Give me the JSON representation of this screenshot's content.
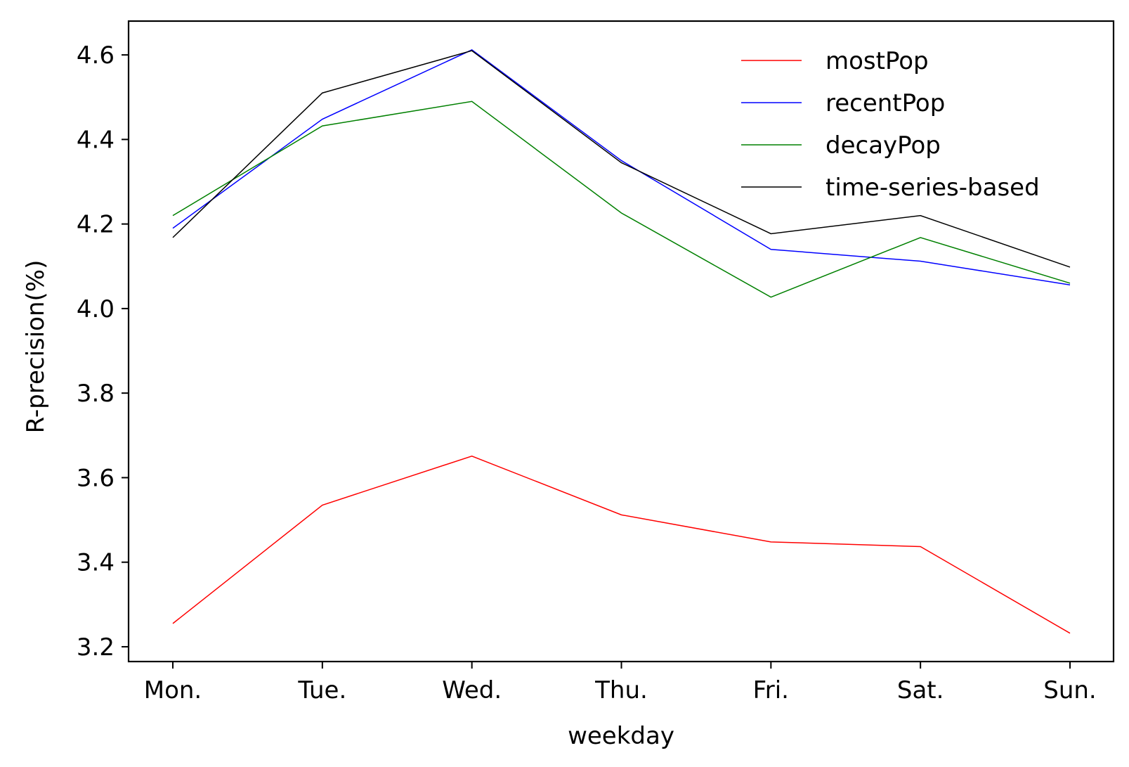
{
  "chart_data": {
    "type": "line",
    "title": "",
    "xlabel": "weekday",
    "ylabel": "R-precision(%)",
    "categories": [
      "Mon.",
      "Tue.",
      "Wed.",
      "Thu.",
      "Fri.",
      "Sat.",
      "Sun."
    ],
    "ylim": [
      3.165,
      4.68
    ],
    "yticks": [
      "3.2",
      "3.4",
      "3.6",
      "3.8",
      "4.0",
      "4.2",
      "4.4",
      "4.6"
    ],
    "grid": false,
    "legend_position": "top-right",
    "series": [
      {
        "name": "mostPop",
        "color": "#ff0000",
        "values": [
          3.255,
          3.535,
          3.651,
          3.512,
          3.448,
          3.437,
          3.232
        ]
      },
      {
        "name": "recentPop",
        "color": "#0000ff",
        "values": [
          4.19,
          4.448,
          4.612,
          4.35,
          4.14,
          4.112,
          4.056
        ]
      },
      {
        "name": "decayPop",
        "color": "#008000",
        "values": [
          4.22,
          4.432,
          4.49,
          4.226,
          4.027,
          4.168,
          4.06
        ]
      },
      {
        "name": "time-series-based",
        "color": "#000000",
        "values": [
          4.168,
          4.51,
          4.61,
          4.345,
          4.177,
          4.22,
          4.098
        ]
      }
    ]
  }
}
